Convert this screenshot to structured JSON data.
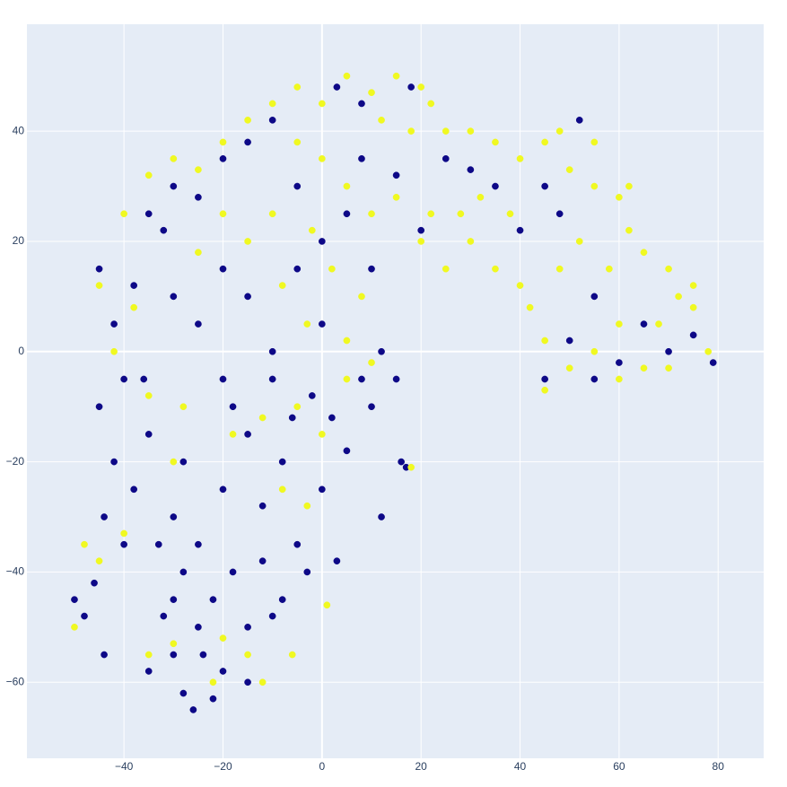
{
  "chart_data": {
    "type": "scatter",
    "xlim": [
      -59.6,
      89.2
    ],
    "ylim": [
      -73.8,
      59.4
    ],
    "xticks": [
      {
        "value": -40,
        "label": "−40"
      },
      {
        "value": -20,
        "label": "−20"
      },
      0,
      20,
      40,
      60,
      80
    ],
    "yticks": [
      {
        "value": -60,
        "label": "−60"
      },
      {
        "value": -40,
        "label": "−40"
      },
      {
        "value": -20,
        "label": "−20"
      },
      0,
      20,
      40
    ],
    "grid": true,
    "series": [
      {
        "color": "#0d0887",
        "x": [
          -30,
          -25,
          -20,
          -28,
          -35,
          -22,
          -15,
          -10,
          -32,
          -18,
          -12,
          -5,
          -25,
          -30,
          -38,
          -42,
          -45,
          -40,
          -35,
          -28,
          -20,
          -15,
          -8,
          0,
          5,
          10,
          12,
          8,
          -2,
          -10,
          -20,
          -25,
          -30,
          -38,
          -45,
          -42,
          -48,
          -50,
          -46,
          -44,
          -26,
          -22,
          -15,
          -8,
          -3,
          3,
          -12,
          -28,
          -33,
          -40,
          -35,
          -30,
          -32,
          -25,
          -20,
          -15,
          -10,
          -5,
          0,
          5,
          8,
          15,
          10,
          -5,
          -15,
          -20,
          -10,
          0,
          12,
          15,
          16,
          17,
          20,
          25,
          30,
          35,
          40,
          45,
          48,
          52,
          55,
          50,
          45,
          55,
          60,
          65,
          70,
          75,
          79,
          3,
          8,
          18,
          -18,
          -6,
          2,
          -36,
          -44,
          -30,
          -24
        ],
        "values": [
          -55,
          -50,
          -58,
          -62,
          -58,
          -45,
          -50,
          -48,
          -48,
          -40,
          -38,
          -35,
          -35,
          -30,
          -25,
          -20,
          -10,
          -5,
          -15,
          -20,
          -25,
          -15,
          -20,
          -25,
          -18,
          -10,
          -30,
          -5,
          -8,
          -5,
          -5,
          5,
          10,
          12,
          15,
          5,
          -48,
          -45,
          -42,
          -55,
          -65,
          -63,
          -60,
          -45,
          -40,
          -38,
          -28,
          -40,
          -35,
          -35,
          25,
          30,
          22,
          28,
          35,
          38,
          42,
          30,
          20,
          25,
          35,
          32,
          15,
          15,
          10,
          15,
          0,
          5,
          0,
          -5,
          -20,
          -21,
          22,
          35,
          33,
          30,
          22,
          30,
          25,
          42,
          10,
          2,
          -5,
          -5,
          -2,
          5,
          0,
          3,
          -2,
          48,
          45,
          48,
          -10,
          -12,
          -12,
          -5,
          -30,
          -45,
          -55
        ]
      },
      {
        "color": "#f0f921",
        "x": [
          -45,
          -40,
          -35,
          -30,
          -25,
          -20,
          -15,
          -10,
          -5,
          0,
          5,
          10,
          15,
          20,
          12,
          18,
          22,
          25,
          30,
          35,
          40,
          45,
          50,
          55,
          60,
          62,
          65,
          70,
          72,
          75,
          68,
          60,
          55,
          50,
          45,
          42,
          48,
          52,
          58,
          65,
          70,
          78,
          38,
          32,
          28,
          22,
          15,
          10,
          5,
          0,
          -5,
          2,
          8,
          -3,
          -8,
          -15,
          -20,
          -25,
          -18,
          -12,
          -5,
          0,
          5,
          -8,
          -3,
          -28,
          -35,
          -30,
          -48,
          -45,
          -50,
          -40,
          -30,
          -20,
          -15,
          -22,
          -12,
          -35,
          -42,
          -38,
          -10,
          -2,
          5,
          10,
          18,
          1,
          -6,
          45,
          60,
          35,
          40,
          30,
          20,
          25,
          55,
          48,
          62,
          75
        ],
        "values": [
          12,
          25,
          32,
          35,
          33,
          38,
          42,
          45,
          48,
          45,
          50,
          47,
          50,
          48,
          42,
          40,
          45,
          40,
          40,
          38,
          35,
          38,
          33,
          30,
          28,
          22,
          18,
          15,
          10,
          8,
          5,
          5,
          0,
          -3,
          2,
          8,
          15,
          20,
          15,
          -3,
          -3,
          0,
          25,
          28,
          25,
          25,
          28,
          25,
          30,
          35,
          38,
          15,
          10,
          5,
          12,
          20,
          25,
          18,
          -15,
          -12,
          -10,
          -15,
          -5,
          -25,
          -28,
          -10,
          -8,
          -20,
          -35,
          -38,
          -50,
          -33,
          -53,
          -52,
          -55,
          -60,
          -60,
          -55,
          0,
          8,
          25,
          22,
          2,
          -2,
          -21,
          -46,
          -55,
          -7,
          -5,
          15,
          12,
          20,
          20,
          15,
          38,
          40,
          30,
          12
        ]
      }
    ]
  }
}
